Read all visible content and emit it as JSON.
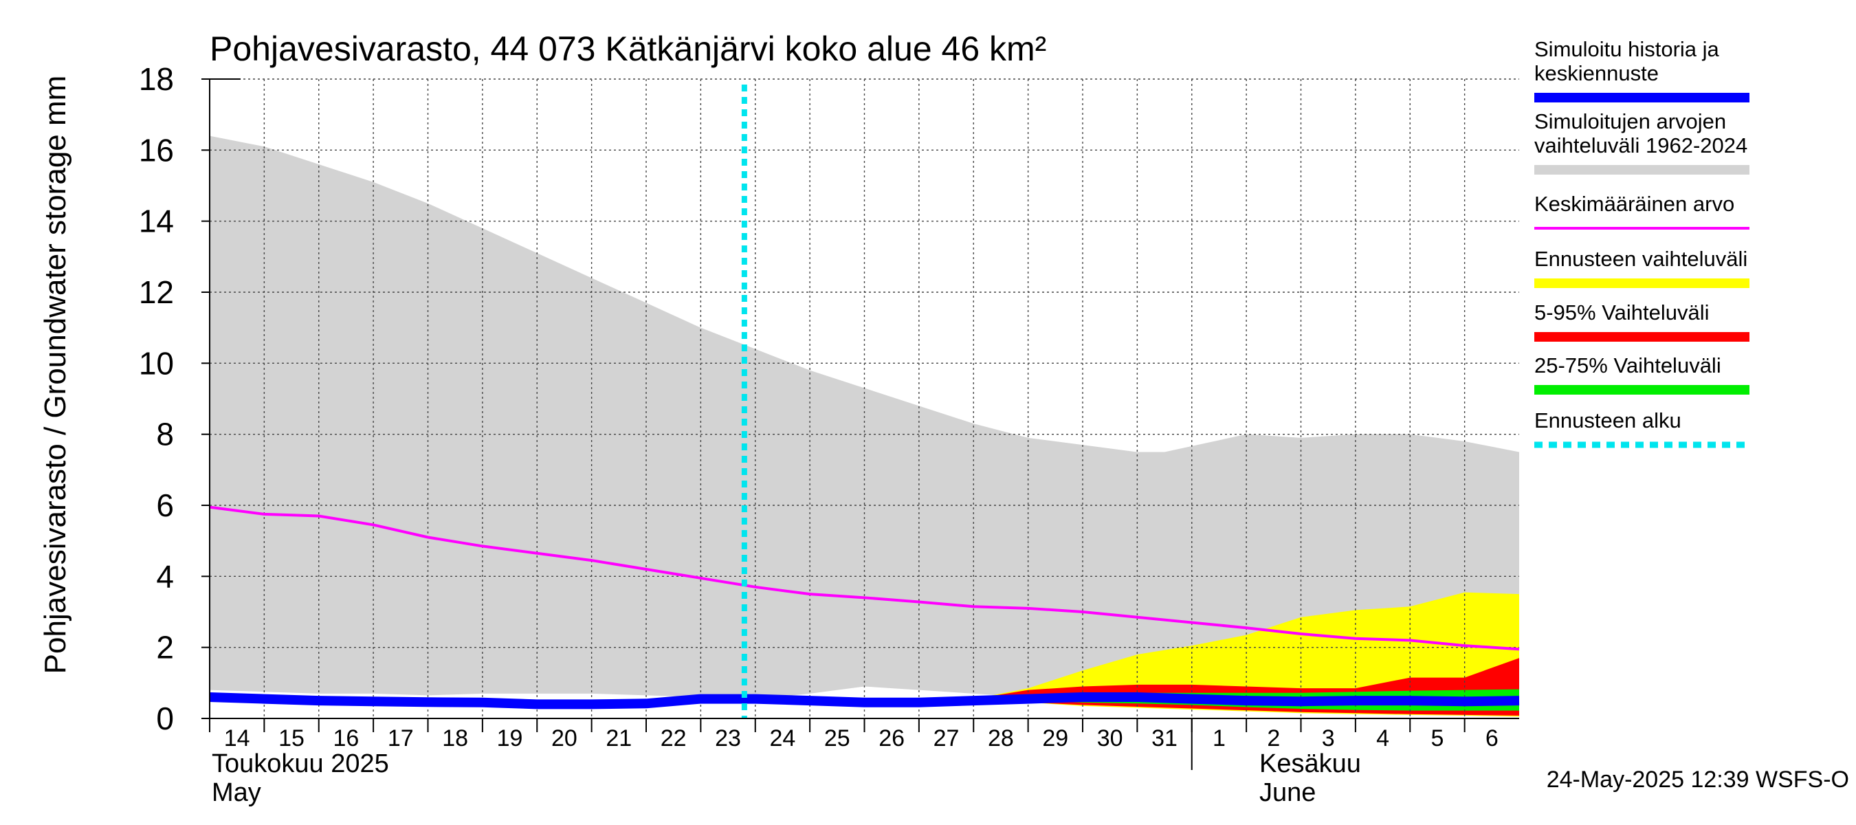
{
  "chart_data": {
    "type": "area",
    "title": "Pohjavesivarasto, 44 073 Kätkänjärvi koko alue 46 km²",
    "ylabel": "Pohjavesivarasto / Groundwater storage   mm",
    "ylim": [
      0,
      18
    ],
    "yticks": [
      0,
      2,
      4,
      6,
      8,
      10,
      12,
      14,
      16,
      18
    ],
    "grid": true,
    "legend_position": "right",
    "xlim": [
      13.5,
      37.5
    ],
    "day_ticks": [
      {
        "x": 14,
        "label": "14"
      },
      {
        "x": 15,
        "label": "15"
      },
      {
        "x": 16,
        "label": "16"
      },
      {
        "x": 17,
        "label": "17"
      },
      {
        "x": 18,
        "label": "18"
      },
      {
        "x": 19,
        "label": "19"
      },
      {
        "x": 20,
        "label": "20"
      },
      {
        "x": 21,
        "label": "21"
      },
      {
        "x": 22,
        "label": "22"
      },
      {
        "x": 23,
        "label": "23"
      },
      {
        "x": 24,
        "label": "24"
      },
      {
        "x": 25,
        "label": "25"
      },
      {
        "x": 26,
        "label": "26"
      },
      {
        "x": 27,
        "label": "27"
      },
      {
        "x": 28,
        "label": "28"
      },
      {
        "x": 29,
        "label": "29"
      },
      {
        "x": 30,
        "label": "30"
      },
      {
        "x": 31,
        "label": "31"
      },
      {
        "x": 32,
        "label": "1"
      },
      {
        "x": 33,
        "label": "2"
      },
      {
        "x": 34,
        "label": "3"
      },
      {
        "x": 35,
        "label": "4"
      },
      {
        "x": 36,
        "label": "5"
      },
      {
        "x": 37,
        "label": "6"
      }
    ],
    "month_labels": [
      {
        "x": 13.5,
        "fi": "Toukokuu  2025",
        "en": "May"
      },
      {
        "x": 32.7,
        "fi": "Kesäkuu",
        "en": "June"
      }
    ],
    "month_boundary_x": 31.5,
    "forecast_start_x": 23.3,
    "colors": {
      "history": "#0000ff",
      "range": "#d3d3d3",
      "mean": "#ff00ff",
      "forecast_range": "#ffff00",
      "p5_95": "#ff0000",
      "p25_75": "#00ee00",
      "forecast_start": "#00e5ee"
    },
    "range_x": [
      13.5,
      14.5,
      15.5,
      16.5,
      17.5,
      18.5,
      19.5,
      20.5,
      21.5,
      22.5,
      23.5,
      24.5,
      25.5,
      26.5,
      27.5,
      28.5,
      29.5,
      30.5,
      31.0,
      32.5,
      33.5,
      34.5,
      35.5,
      36.5,
      37.5
    ],
    "range_upper": [
      16.4,
      16.1,
      15.6,
      15.1,
      14.5,
      13.8,
      13.1,
      12.4,
      11.7,
      11.0,
      10.4,
      9.8,
      9.3,
      8.8,
      8.3,
      7.9,
      7.7,
      7.5,
      7.5,
      8.0,
      7.9,
      8.0,
      8.0,
      7.8,
      7.5
    ],
    "range_lower": [
      0.8,
      0.75,
      0.7,
      0.7,
      0.65,
      0.7,
      0.7,
      0.7,
      0.65,
      0.6,
      0.55,
      0.7,
      0.9,
      0.8,
      0.7,
      0.6,
      0.5,
      0.45,
      0.4,
      0.35,
      0.3,
      0.3,
      0.3,
      0.3,
      0.3
    ],
    "mean_x": [
      13.5,
      14.5,
      15.5,
      16.5,
      17.5,
      18.5,
      19.5,
      20.5,
      21.5,
      22.5,
      23.5,
      24.5,
      25.5,
      26.5,
      27.5,
      28.5,
      29.5,
      30.5,
      31.5,
      32.5,
      33.5,
      34.5,
      35.5,
      36.5,
      37.5
    ],
    "mean_values": [
      5.95,
      5.75,
      5.7,
      5.45,
      5.1,
      4.85,
      4.65,
      4.45,
      4.2,
      3.95,
      3.7,
      3.5,
      3.4,
      3.28,
      3.15,
      3.1,
      3.0,
      2.85,
      2.7,
      2.55,
      2.38,
      2.25,
      2.2,
      2.05,
      1.95
    ],
    "forecast_x": [
      27.5,
      28.5,
      29.5,
      30.5,
      31.5,
      32.5,
      33.5,
      34.5,
      35.5,
      36.5,
      37.5
    ],
    "forecast_upper": [
      0.55,
      0.85,
      1.35,
      1.8,
      2.05,
      2.35,
      2.85,
      3.05,
      3.15,
      3.55,
      3.5
    ],
    "forecast_lower": [
      0.5,
      0.45,
      0.35,
      0.3,
      0.25,
      0.2,
      0.15,
      0.12,
      0.1,
      0.08,
      0.05
    ],
    "p95": [
      0.55,
      0.8,
      0.9,
      0.95,
      0.95,
      0.9,
      0.85,
      0.85,
      1.15,
      1.15,
      1.7
    ],
    "p5": [
      0.5,
      0.45,
      0.38,
      0.33,
      0.28,
      0.23,
      0.18,
      0.15,
      0.12,
      0.1,
      0.08
    ],
    "p75": [
      0.55,
      0.65,
      0.7,
      0.72,
      0.72,
      0.72,
      0.72,
      0.75,
      0.78,
      0.8,
      0.82
    ],
    "p25": [
      0.5,
      0.48,
      0.45,
      0.42,
      0.38,
      0.32,
      0.27,
      0.24,
      0.22,
      0.22,
      0.22
    ],
    "history_x": [
      13.5,
      14.5,
      15.5,
      16.5,
      17.5,
      18.5,
      19.5,
      20.5,
      21.5,
      22.5,
      23.5,
      24.5,
      25.5,
      26.5,
      27.5,
      28.5,
      29.5,
      30.5,
      31.5,
      32.5,
      33.5,
      34.5,
      35.5,
      36.5,
      37.5
    ],
    "history_values": [
      0.6,
      0.55,
      0.5,
      0.48,
      0.46,
      0.45,
      0.4,
      0.4,
      0.42,
      0.55,
      0.55,
      0.5,
      0.45,
      0.45,
      0.5,
      0.55,
      0.6,
      0.6,
      0.55,
      0.5,
      0.48,
      0.5,
      0.5,
      0.48,
      0.5
    ]
  },
  "legend": [
    {
      "label": "Simuloitu historia ja\nkeskiennuste",
      "color": "#0000ff",
      "style": "thick"
    },
    {
      "label": "Simuloitujen arvojen\nvaihteluväli 1962-2024",
      "color": "#d3d3d3",
      "style": "thick"
    },
    {
      "label": "Keskimääräinen arvo",
      "color": "#ff00ff",
      "style": "thin"
    },
    {
      "label": "Ennusteen vaihteluväli",
      "color": "#ffff00",
      "style": "thick"
    },
    {
      "label": "5-95% Vaihteluväli",
      "color": "#ff0000",
      "style": "thick"
    },
    {
      "label": "25-75% Vaihteluväli",
      "color": "#00ee00",
      "style": "thick"
    },
    {
      "label": "Ennusteen alku",
      "color": "#00e5ee",
      "style": "dotted"
    }
  ],
  "footer": "24-May-2025 12:39 WSFS-O"
}
